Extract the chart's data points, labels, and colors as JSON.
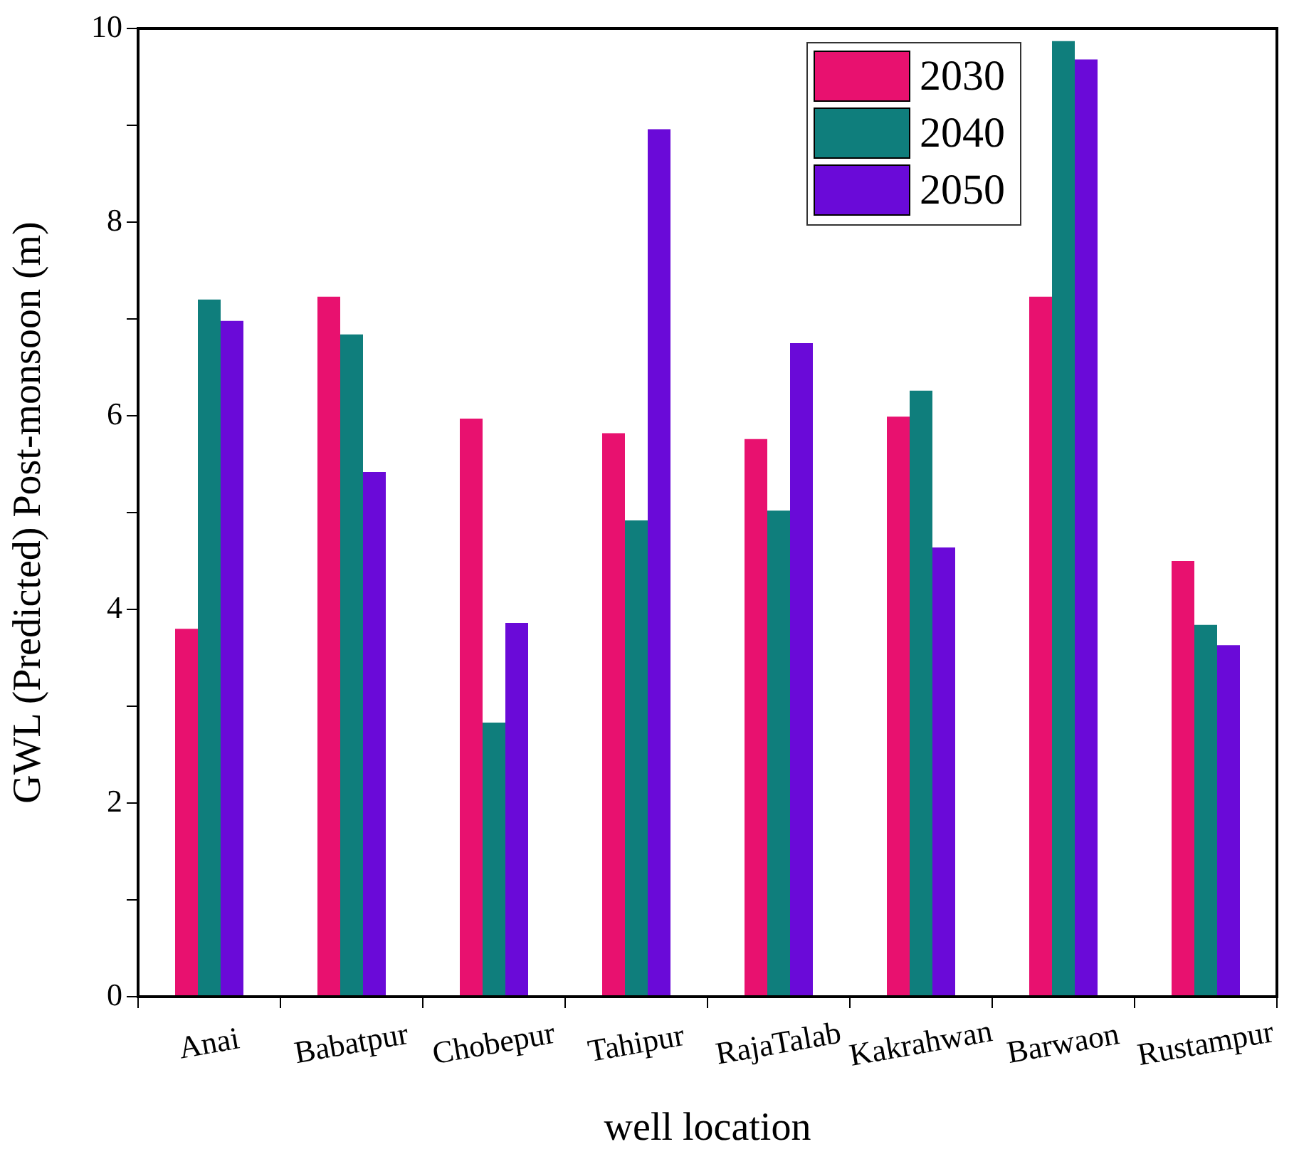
{
  "chart_data": {
    "type": "bar",
    "xlabel": "well location",
    "ylabel": "GWL (Predicted) Post-monsoon (m)",
    "categories": [
      "Anai",
      "Babatpur",
      "Chobepur",
      "Tahipur",
      "RajaTalab",
      "Kakrahwan",
      "Barwaon",
      "Rustampur"
    ],
    "series": [
      {
        "name": "2030",
        "color": "#e8116f",
        "values": [
          3.8,
          7.23,
          5.97,
          5.82,
          5.76,
          5.99,
          7.23,
          4.5
        ]
      },
      {
        "name": "2040",
        "color": "#0f7e7c",
        "values": [
          7.2,
          6.84,
          2.83,
          4.92,
          5.02,
          6.26,
          9.87,
          3.84
        ]
      },
      {
        "name": "2050",
        "color": "#6a0ad8",
        "values": [
          6.98,
          5.42,
          3.86,
          8.96,
          6.75,
          4.64,
          9.68,
          3.63
        ]
      }
    ],
    "ylim": [
      0,
      10
    ],
    "yticks": [
      0,
      {
        "value": 1,
        "label": null
      },
      2,
      {
        "value": 3,
        "label": null
      },
      4,
      {
        "value": 5,
        "label": null
      },
      6,
      {
        "value": 7,
        "label": null
      },
      8,
      {
        "value": 9,
        "label": null
      },
      10
    ],
    "grid": false,
    "legend": "top right"
  }
}
